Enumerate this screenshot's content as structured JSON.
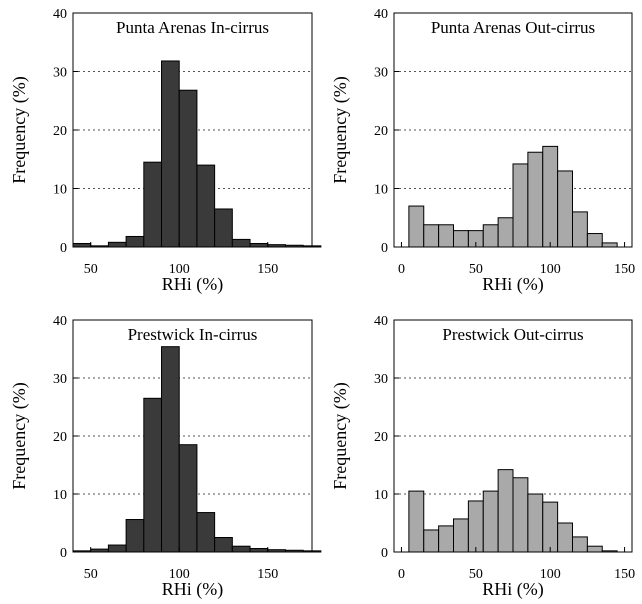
{
  "chart_data": [
    {
      "type": "bar",
      "title": "Punta Arenas In-cirrus",
      "xlabel": "RHi (%)",
      "ylabel": "Frequency (%)",
      "xlim": [
        40,
        175
      ],
      "ylim": [
        0,
        40
      ],
      "xticks": [
        50,
        100,
        150
      ],
      "yticks": [
        0,
        10,
        20,
        30,
        40
      ],
      "grid": "horizontal-dotted",
      "bar_color": "#3a3a3a",
      "bin_width": 10,
      "bin_starts": [
        40,
        50,
        60,
        70,
        80,
        90,
        100,
        110,
        120,
        130,
        140,
        150,
        160,
        170
      ],
      "values": [
        0.6,
        0.2,
        0.8,
        1.8,
        14.5,
        31.8,
        26.8,
        14.0,
        6.5,
        1.3,
        0.6,
        0.4,
        0.3,
        0.2
      ]
    },
    {
      "type": "bar",
      "title": "Punta Arenas Out-cirrus",
      "xlabel": "RHi (%)",
      "ylabel": "Frequency (%)",
      "xlim": [
        -5,
        155
      ],
      "ylim": [
        0,
        40
      ],
      "xticks": [
        0,
        50,
        100,
        150
      ],
      "yticks": [
        0,
        10,
        20,
        30,
        40
      ],
      "grid": "horizontal-dotted",
      "bar_color": "#a9a9a9",
      "bin_width": 10,
      "bin_starts": [
        5,
        15,
        25,
        35,
        45,
        55,
        65,
        75,
        85,
        95,
        105,
        115,
        125,
        135
      ],
      "values": [
        7.0,
        3.8,
        3.8,
        2.8,
        2.8,
        3.8,
        5.0,
        14.2,
        16.2,
        17.2,
        13.0,
        6.0,
        2.3,
        0.7
      ]
    },
    {
      "type": "bar",
      "title": "Prestwick In-cirrus",
      "xlabel": "RHi (%)",
      "ylabel": "Frequency (%)",
      "xlim": [
        40,
        175
      ],
      "ylim": [
        0,
        40
      ],
      "xticks": [
        50,
        100,
        150
      ],
      "yticks": [
        0,
        10,
        20,
        30,
        40
      ],
      "grid": "horizontal-dotted",
      "bar_color": "#3a3a3a",
      "bin_width": 10,
      "bin_starts": [
        40,
        50,
        60,
        70,
        80,
        90,
        100,
        110,
        120,
        130,
        140,
        150,
        160,
        170
      ],
      "values": [
        0.2,
        0.5,
        1.2,
        5.6,
        26.5,
        35.4,
        18.5,
        6.8,
        2.5,
        1.0,
        0.6,
        0.4,
        0.3,
        0.2
      ]
    },
    {
      "type": "bar",
      "title": "Prestwick Out-cirrus",
      "xlabel": "RHi (%)",
      "ylabel": "Frequency (%)",
      "xlim": [
        -5,
        155
      ],
      "ylim": [
        0,
        40
      ],
      "xticks": [
        0,
        50,
        100,
        150
      ],
      "yticks": [
        0,
        10,
        20,
        30,
        40
      ],
      "grid": "horizontal-dotted",
      "bar_color": "#a9a9a9",
      "bin_width": 10,
      "bin_starts": [
        5,
        15,
        25,
        35,
        45,
        55,
        65,
        75,
        85,
        95,
        105,
        115,
        125,
        135
      ],
      "values": [
        10.5,
        3.8,
        4.5,
        5.7,
        8.8,
        10.5,
        14.2,
        12.8,
        10.0,
        8.6,
        5.0,
        2.6,
        1.0,
        0.2
      ]
    }
  ]
}
